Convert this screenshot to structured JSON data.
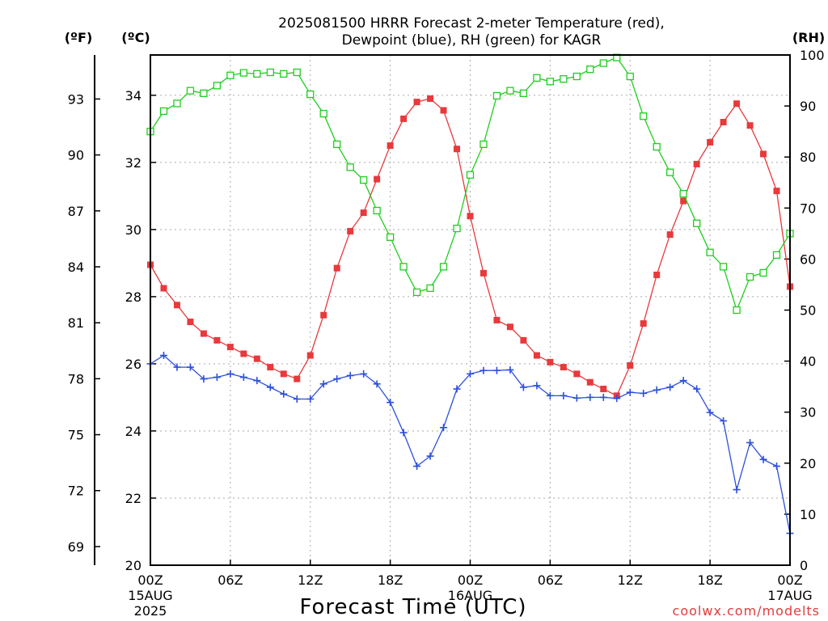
{
  "chart_data": {
    "type": "line",
    "title_line1": "2025081500 HRRR Forecast 2-meter Temperature (red),",
    "title_line2": "Dewpoint (blue), RH (green) for KAGR",
    "xlabel": "Forecast Time (UTC)",
    "credit": "coolwx.com/modelts",
    "unit_labels": {
      "fahrenheit": "(ºF)",
      "celsius": "(ºC)",
      "rh": "(RH)"
    },
    "x_range_hours": [
      0,
      48
    ],
    "y_celsius_range": [
      20,
      35.2
    ],
    "y_rh_range": [
      0,
      100
    ],
    "celsius_ticks": [
      "20",
      "22",
      "24",
      "26",
      "28",
      "30",
      "32",
      "34"
    ],
    "fahrenheit_ticks": [
      "69",
      "72",
      "75",
      "78",
      "81",
      "84",
      "87",
      "90",
      "93"
    ],
    "rh_ticks": [
      "0",
      "10",
      "20",
      "30",
      "40",
      "50",
      "60",
      "70",
      "80",
      "90",
      "100"
    ],
    "x_ticks": [
      {
        "hour": 0,
        "line1": "00Z",
        "line2": "15AUG",
        "line3": "2025"
      },
      {
        "hour": 6,
        "line1": "06Z",
        "line2": "",
        "line3": ""
      },
      {
        "hour": 12,
        "line1": "12Z",
        "line2": "",
        "line3": ""
      },
      {
        "hour": 18,
        "line1": "18Z",
        "line2": "",
        "line3": ""
      },
      {
        "hour": 24,
        "line1": "00Z",
        "line2": "16AUG",
        "line3": ""
      },
      {
        "hour": 30,
        "line1": "06Z",
        "line2": "",
        "line3": ""
      },
      {
        "hour": 36,
        "line1": "12Z",
        "line2": "",
        "line3": ""
      },
      {
        "hour": 42,
        "line1": "18Z",
        "line2": "",
        "line3": ""
      },
      {
        "hour": 48,
        "line1": "00Z",
        "line2": "17AUG",
        "line3": ""
      }
    ],
    "series": [
      {
        "name": "Temperature",
        "axis": "celsius",
        "color": "#e8393c",
        "marker": "filled-square",
        "x": [
          0,
          1,
          2,
          3,
          4,
          5,
          6,
          7,
          8,
          9,
          10,
          11,
          12,
          13,
          14,
          15,
          16,
          17,
          18,
          19,
          20,
          21,
          22,
          23,
          24,
          25,
          26,
          27,
          28,
          29,
          30,
          31,
          32,
          33,
          34,
          35,
          36,
          37,
          38,
          39,
          40,
          41,
          42,
          43,
          44,
          45,
          46,
          47,
          48
        ],
        "values": [
          28.95,
          28.25,
          27.75,
          27.25,
          26.9,
          26.7,
          26.5,
          26.3,
          26.15,
          25.9,
          25.7,
          25.55,
          26.25,
          27.45,
          28.85,
          29.95,
          30.5,
          31.5,
          32.5,
          33.3,
          33.8,
          33.9,
          33.55,
          32.4,
          30.4,
          28.7,
          27.3,
          27.1,
          26.7,
          26.25,
          26.05,
          25.9,
          25.7,
          25.45,
          25.25,
          25.05,
          25.95,
          27.2,
          28.65,
          29.85,
          30.85,
          31.95,
          32.6,
          33.2,
          33.75,
          33.1,
          32.25,
          31.15,
          28.3
        ]
      },
      {
        "name": "Dewpoint",
        "axis": "celsius",
        "color": "#2c4fdc",
        "marker": "plus",
        "x": [
          0,
          1,
          2,
          3,
          4,
          5,
          6,
          7,
          8,
          9,
          10,
          11,
          12,
          13,
          14,
          15,
          16,
          17,
          18,
          19,
          20,
          21,
          22,
          23,
          24,
          25,
          26,
          27,
          28,
          29,
          30,
          31,
          32,
          33,
          34,
          35,
          36,
          37,
          38,
          39,
          40,
          41,
          42,
          43,
          44,
          45,
          46,
          47,
          48
        ],
        "values": [
          26.0,
          26.25,
          25.9,
          25.9,
          25.55,
          25.6,
          25.7,
          25.6,
          25.5,
          25.3,
          25.1,
          24.95,
          24.95,
          25.4,
          25.55,
          25.65,
          25.7,
          25.4,
          24.85,
          23.95,
          22.95,
          23.25,
          24.1,
          25.25,
          25.7,
          25.8,
          25.8,
          25.82,
          25.3,
          25.35,
          25.05,
          25.05,
          24.98,
          25.0,
          25.0,
          24.97,
          25.15,
          25.12,
          25.22,
          25.3,
          25.5,
          25.25,
          24.55,
          24.3,
          22.25,
          23.65,
          23.15,
          22.95,
          20.95
        ]
      },
      {
        "name": "RH",
        "axis": "rh",
        "color": "#1fce1f",
        "marker": "open-square",
        "x": [
          0,
          1,
          2,
          3,
          4,
          5,
          6,
          7,
          8,
          9,
          10,
          11,
          12,
          13,
          14,
          15,
          16,
          17,
          18,
          19,
          20,
          21,
          22,
          23,
          24,
          25,
          26,
          27,
          28,
          29,
          30,
          31,
          32,
          33,
          34,
          35,
          36,
          37,
          38,
          39,
          40,
          41,
          42,
          43,
          44,
          45,
          46,
          47,
          48
        ],
        "values": [
          85,
          89,
          90.5,
          93,
          92.5,
          94,
          96,
          96.5,
          96.3,
          96.6,
          96.3,
          96.6,
          92.3,
          88.5,
          82.5,
          78,
          75.5,
          69.5,
          64.3,
          58.5,
          53.5,
          54.3,
          58.5,
          66,
          76.5,
          82.5,
          92,
          93,
          92.5,
          95.5,
          94.8,
          95.3,
          95.8,
          97.2,
          98.4,
          99.5,
          95.8,
          88,
          82,
          77,
          72.8,
          67,
          61.3,
          58.5,
          50,
          56.5,
          57.3,
          60.8,
          65
        ]
      }
    ]
  }
}
